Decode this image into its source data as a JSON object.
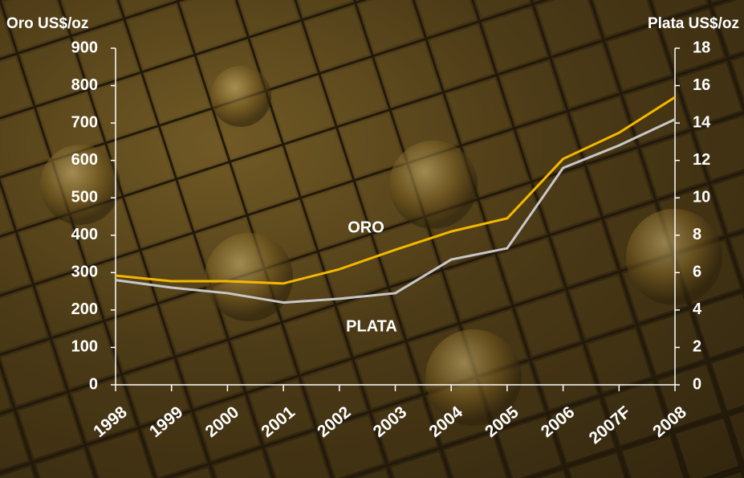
{
  "chart_data": {
    "type": "line",
    "y_label": "Oro US$/oz",
    "y2_label": "Plata US$/oz",
    "categories": [
      "1998",
      "1999",
      "2000",
      "2001",
      "2002",
      "2003",
      "2004",
      "2005",
      "2006",
      "2007F",
      "2008"
    ],
    "series": [
      {
        "name": "ORO",
        "color": "#f5b800",
        "values": [
          292,
          277,
          277,
          271,
          309,
          361,
          410,
          445,
          604,
          674,
          769
        ]
      },
      {
        "name": "PLATA",
        "color": "#c8c8c8",
        "axis": "y2",
        "values": [
          5.6,
          5.2,
          4.9,
          4.4,
          4.6,
          4.9,
          6.7,
          7.3,
          11.6,
          12.8,
          14.2
        ]
      }
    ],
    "ylim": [
      0,
      900
    ],
    "yticks": [
      0,
      100,
      200,
      300,
      400,
      500,
      600,
      700,
      800,
      900
    ],
    "y2lim": [
      0,
      18
    ],
    "y2ticks": [
      0,
      2,
      4,
      6,
      8,
      10,
      12,
      14,
      16,
      18
    ]
  }
}
